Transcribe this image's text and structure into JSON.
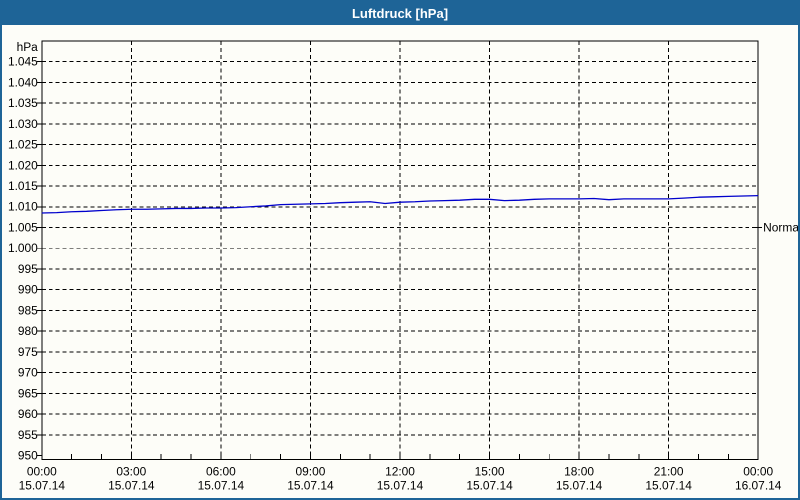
{
  "title": "Luftdruck [hPa]",
  "colors": {
    "titlebar_bg": "#1e6497",
    "titlebar_text": "#ffffff",
    "window_border": "#1e6497",
    "plot_background": "#fdfdf8",
    "frame": "#000000",
    "grid": "#000000",
    "line": "#0000cc",
    "labels": "#000000"
  },
  "chart_data": {
    "type": "line",
    "title": "Luftdruck [hPa]",
    "unit_label": "hPa",
    "grid": "dashed",
    "ylim": [
      949,
      1050
    ],
    "xlim_hours": [
      0,
      24
    ],
    "x_minor_tick_hours": 1,
    "y_ticks": [
      {
        "value": 1045,
        "label": "1.045"
      },
      {
        "value": 1040,
        "label": "1.040"
      },
      {
        "value": 1035,
        "label": "1.035"
      },
      {
        "value": 1030,
        "label": "1.030"
      },
      {
        "value": 1025,
        "label": "1.025"
      },
      {
        "value": 1020,
        "label": "1.020"
      },
      {
        "value": 1015,
        "label": "1.015"
      },
      {
        "value": 1010,
        "label": "1.010"
      },
      {
        "value": 1005,
        "label": "1.005"
      },
      {
        "value": 1000,
        "label": "1.000"
      },
      {
        "value": 995,
        "label": "995"
      },
      {
        "value": 990,
        "label": "990"
      },
      {
        "value": 985,
        "label": "985"
      },
      {
        "value": 980,
        "label": "980"
      },
      {
        "value": 975,
        "label": "975"
      },
      {
        "value": 970,
        "label": "970"
      },
      {
        "value": 965,
        "label": "965"
      },
      {
        "value": 960,
        "label": "960"
      },
      {
        "value": 955,
        "label": "955"
      },
      {
        "value": 950,
        "label": "950"
      }
    ],
    "x_ticks": [
      {
        "hour": 0,
        "time": "00:00",
        "date": "15.07.14"
      },
      {
        "hour": 3,
        "time": "03:00",
        "date": "15.07.14"
      },
      {
        "hour": 6,
        "time": "06:00",
        "date": "15.07.14"
      },
      {
        "hour": 9,
        "time": "09:00",
        "date": "15.07.14"
      },
      {
        "hour": 12,
        "time": "12:00",
        "date": "15.07.14"
      },
      {
        "hour": 15,
        "time": "15:00",
        "date": "15.07.14"
      },
      {
        "hour": 18,
        "time": "18:00",
        "date": "15.07.14"
      },
      {
        "hour": 21,
        "time": "21:00",
        "date": "15.07.14"
      },
      {
        "hour": 24,
        "time": "00:00",
        "date": "16.07.14"
      }
    ],
    "series": [
      {
        "name": "Luftdruck",
        "color": "#0000cc",
        "x_start_hour": 0,
        "x_step_hours": 0.5,
        "values": [
          1008.5,
          1008.6,
          1008.8,
          1008.9,
          1009.1,
          1009.3,
          1009.4,
          1009.4,
          1009.5,
          1009.6,
          1009.6,
          1009.7,
          1009.7,
          1009.8,
          1010.0,
          1010.2,
          1010.5,
          1010.6,
          1010.7,
          1010.8,
          1011.0,
          1011.1,
          1011.2,
          1010.8,
          1011.1,
          1011.2,
          1011.4,
          1011.5,
          1011.6,
          1011.8,
          1011.8,
          1011.5,
          1011.6,
          1011.8,
          1011.9,
          1011.9,
          1011.9,
          1012.0,
          1011.7,
          1011.9,
          1011.9,
          1011.9,
          1011.9,
          1012.1,
          1012.3,
          1012.4,
          1012.5,
          1012.6,
          1012.7
        ]
      }
    ],
    "annotations": [
      {
        "label": "Normal",
        "value": 1005,
        "side": "right"
      }
    ]
  }
}
